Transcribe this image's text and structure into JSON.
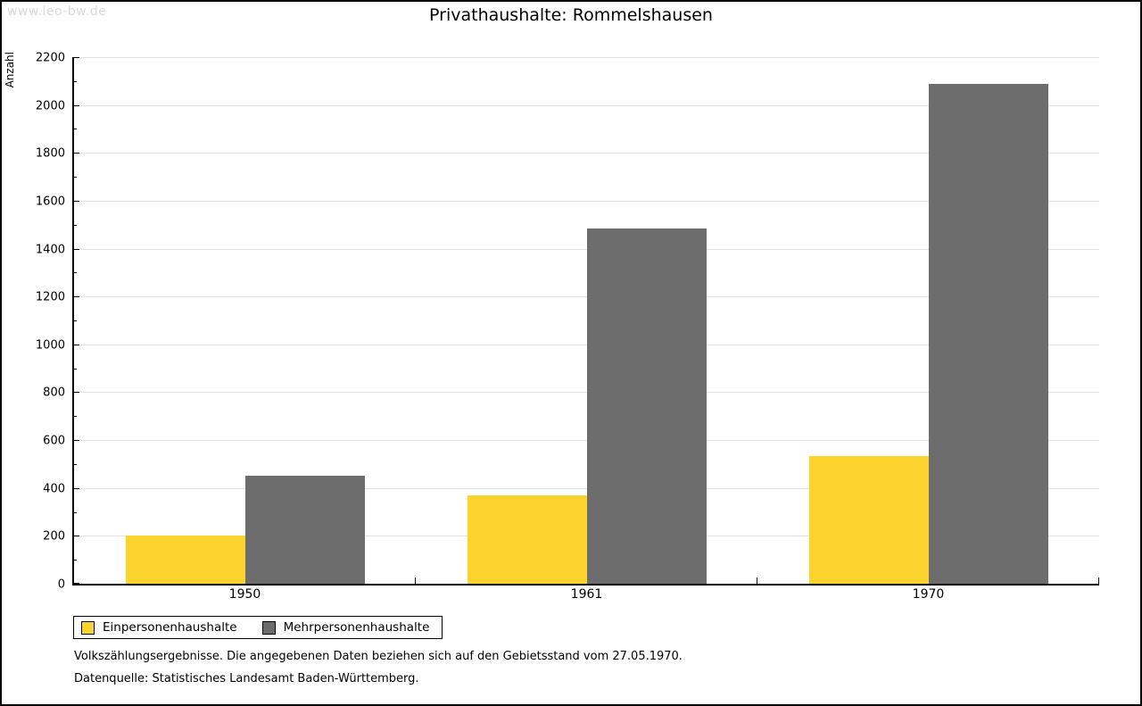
{
  "watermark": "www.leo-bw.de",
  "chart_data": {
    "type": "bar",
    "title": "Privathaushalte: Rommelshausen",
    "xlabel": "",
    "ylabel": "Anzahl",
    "categories": [
      "1950",
      "1961",
      "1970"
    ],
    "series": [
      {
        "name": "Einpersonenhaushalte",
        "color": "#FCD32D",
        "values": [
          200,
          370,
          534
        ]
      },
      {
        "name": "Mehrpersonenhaushalte",
        "color": "#6C6C6C",
        "values": [
          452,
          1485,
          2090
        ]
      }
    ],
    "ylim": [
      0,
      2200
    ],
    "ytick_step": 200,
    "minor_ytick_step": 100,
    "grid": "horizontal-major",
    "gridline_color": "#e0e0e0",
    "legend_position": "bottom-left"
  },
  "footnotes": [
    "Volkszählungsergebnisse. Die angegebenen Daten beziehen sich auf den Gebietsstand vom 27.05.1970.",
    "Datenquelle: Statistisches Landesamt Baden-Württemberg."
  ]
}
